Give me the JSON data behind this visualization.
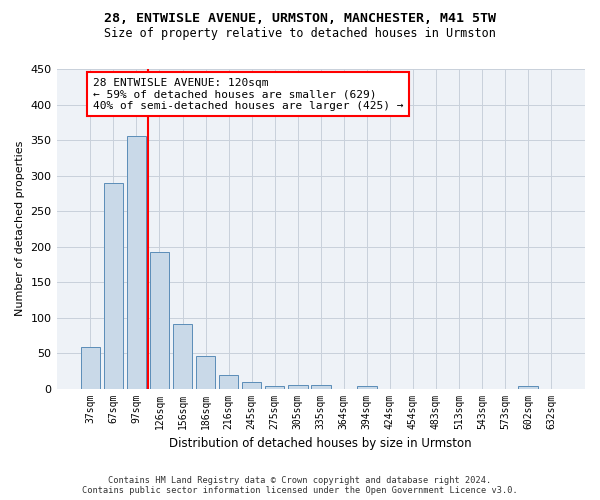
{
  "title": "28, ENTWISLE AVENUE, URMSTON, MANCHESTER, M41 5TW",
  "subtitle": "Size of property relative to detached houses in Urmston",
  "xlabel": "Distribution of detached houses by size in Urmston",
  "ylabel": "Number of detached properties",
  "bar_color": "#c9d9e8",
  "bar_edge_color": "#5b8db8",
  "categories": [
    "37sqm",
    "67sqm",
    "97sqm",
    "126sqm",
    "156sqm",
    "186sqm",
    "216sqm",
    "245sqm",
    "275sqm",
    "305sqm",
    "335sqm",
    "364sqm",
    "394sqm",
    "424sqm",
    "454sqm",
    "483sqm",
    "513sqm",
    "543sqm",
    "573sqm",
    "602sqm",
    "632sqm"
  ],
  "values": [
    59,
    290,
    355,
    192,
    91,
    46,
    19,
    9,
    4,
    5,
    5,
    0,
    4,
    0,
    0,
    0,
    0,
    0,
    0,
    4,
    0
  ],
  "ylim": [
    0,
    450
  ],
  "yticks": [
    0,
    50,
    100,
    150,
    200,
    250,
    300,
    350,
    400,
    450
  ],
  "annotation_line1": "28 ENTWISLE AVENUE: 120sqm",
  "annotation_line2": "← 59% of detached houses are smaller (629)",
  "annotation_line3": "40% of semi-detached houses are larger (425) →",
  "vline_x": 2.5,
  "footer_line1": "Contains HM Land Registry data © Crown copyright and database right 2024.",
  "footer_line2": "Contains public sector information licensed under the Open Government Licence v3.0.",
  "bg_color": "#eef2f7",
  "grid_color": "#c8d0db"
}
